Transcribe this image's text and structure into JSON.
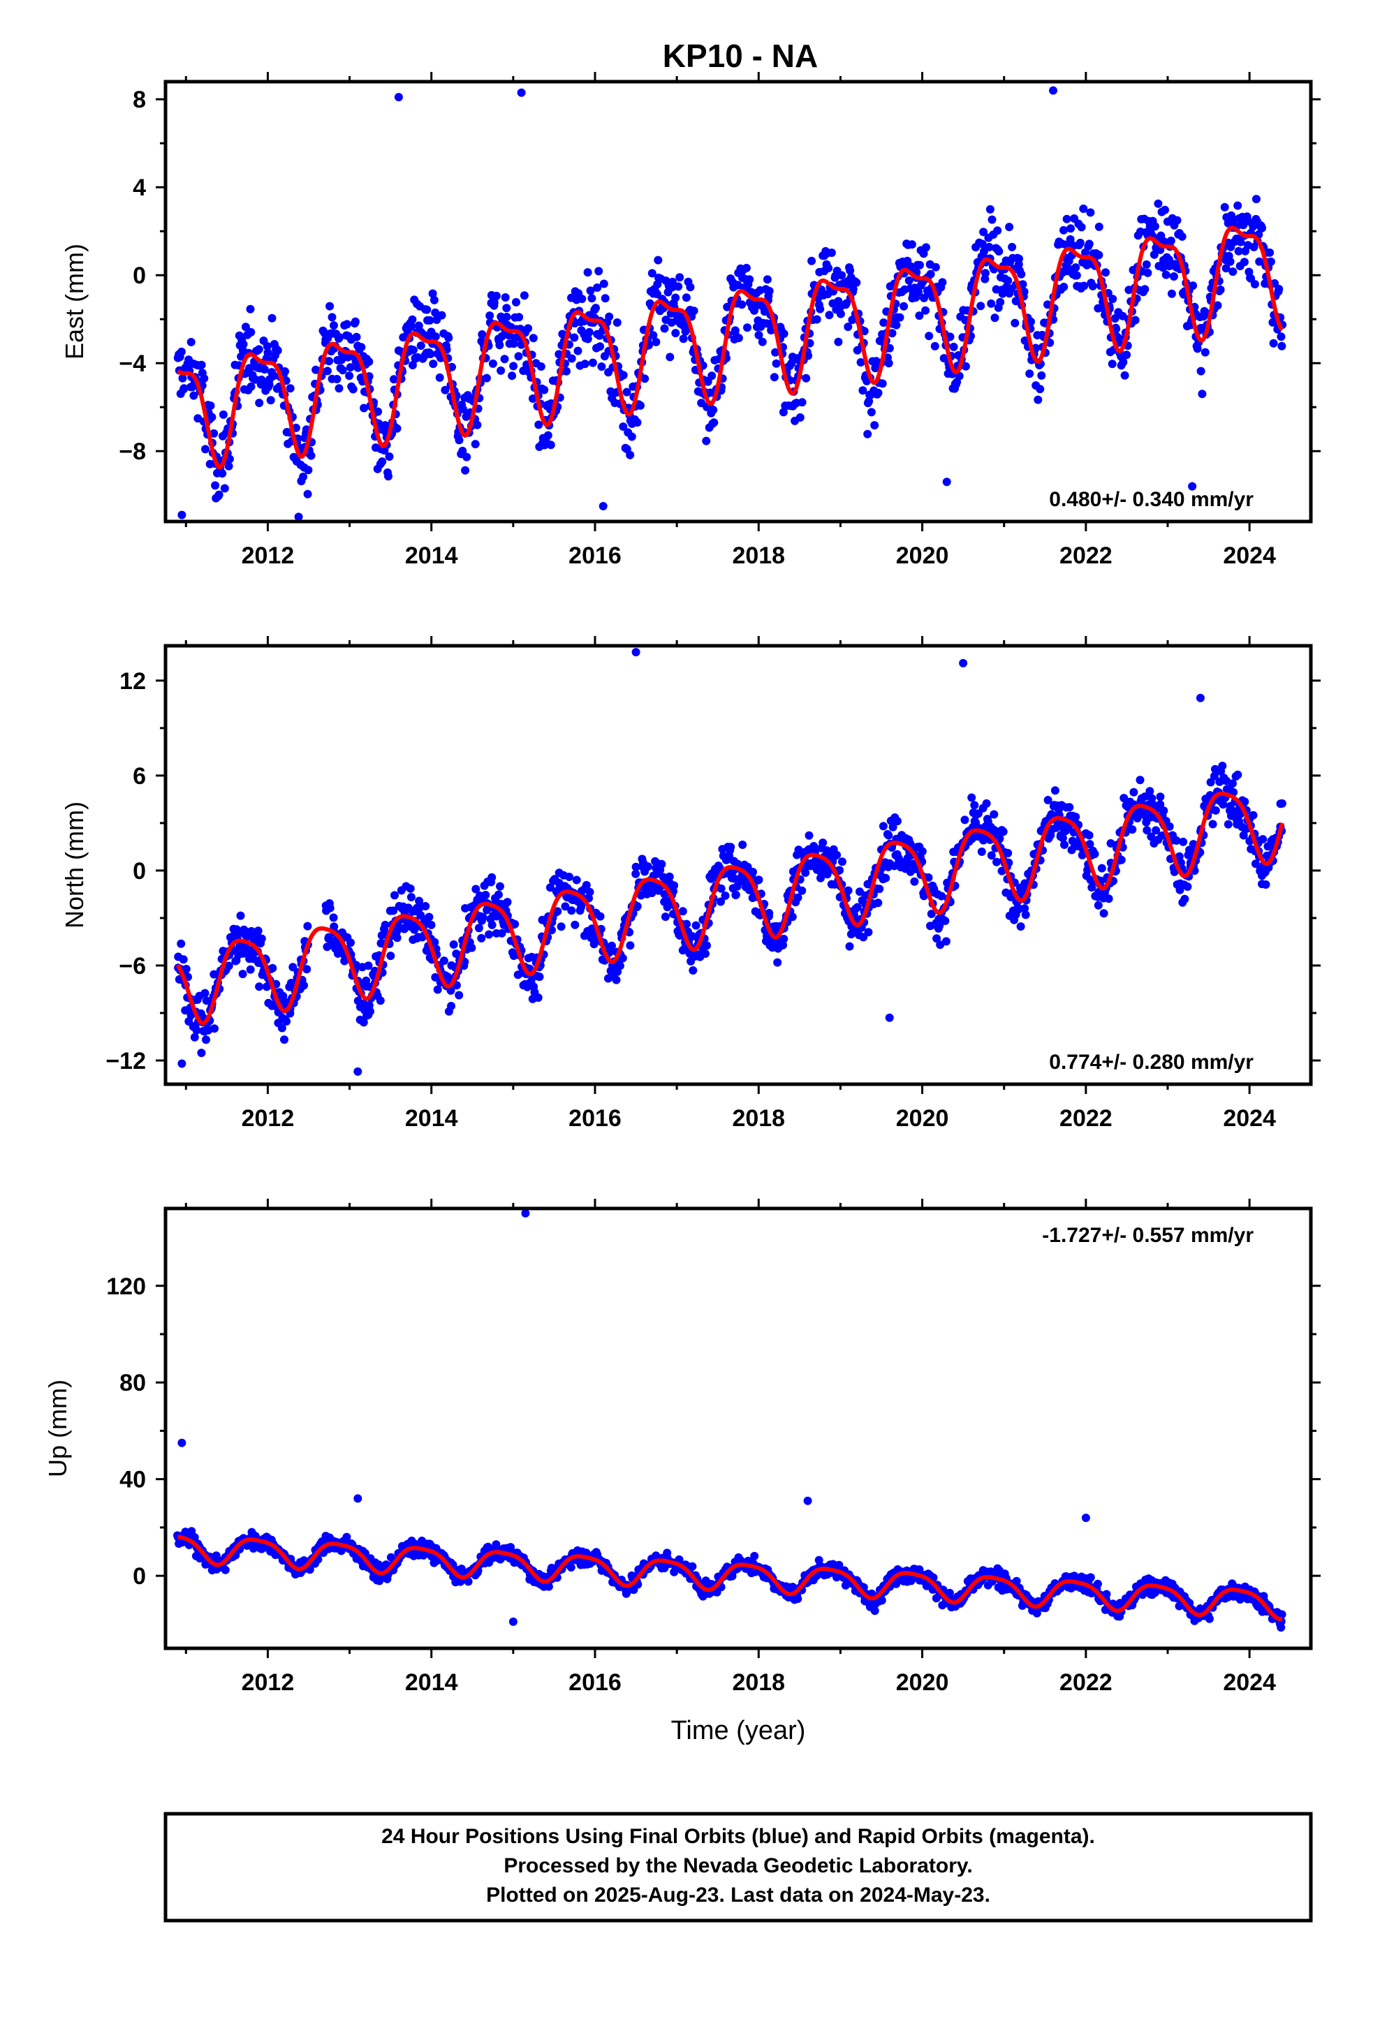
{
  "title": "KP10 - NA",
  "colors": {
    "points": "#0000ff",
    "model": "#ff0000",
    "frame": "#000000"
  },
  "chart_data": [
    {
      "type": "scatter",
      "name": "east",
      "ylabel": "East (mm)",
      "xlabel": "",
      "xlim": [
        2010.75,
        2024.75
      ],
      "ylim": [
        -11.2,
        8.8
      ],
      "xticks": [
        "2012",
        "2014",
        "2016",
        "2018",
        "2020",
        "2022",
        "2024"
      ],
      "yticks": [
        "8",
        "4",
        "0",
        "−4",
        "−8"
      ],
      "rate_label": "0.480+/- 0.340 mm/yr",
      "rate_position": "bottom-right",
      "model": {
        "start": 2010.9,
        "end": 2024.4,
        "offset": -5.9,
        "rate": 0.48,
        "annual_amplitude": 2.3,
        "annual_phase": 0.65,
        "semiannual_amplitude": 0.8
      },
      "scatter": {
        "std": 2.2,
        "outliers": [
          [
            2013.6,
            8.1
          ],
          [
            2015.1,
            8.3
          ],
          [
            2016.1,
            -10.5
          ],
          [
            2021.6,
            8.4
          ],
          [
            2010.95,
            -10.9
          ],
          [
            2023.3,
            -9.6
          ],
          [
            2020.3,
            -9.4
          ]
        ]
      }
    },
    {
      "type": "scatter",
      "name": "north",
      "ylabel": "North (mm)",
      "xlabel": "",
      "xlim": [
        2010.75,
        2024.75
      ],
      "ylim": [
        -13.5,
        14.2
      ],
      "xticks": [
        "2012",
        "2014",
        "2016",
        "2018",
        "2020",
        "2022",
        "2024"
      ],
      "yticks": [
        "12",
        "6",
        "0",
        "−6",
        "−12"
      ],
      "rate_label": "0.774+/- 0.280 mm/yr",
      "rate_position": "bottom-right",
      "model": {
        "start": 2010.9,
        "end": 2024.4,
        "offset": -7.0,
        "rate": 0.774,
        "annual_amplitude": 2.4,
        "annual_phase": 0.45,
        "semiannual_amplitude": 0.5
      },
      "scatter": {
        "std": 2.0,
        "outliers": [
          [
            2016.5,
            13.8
          ],
          [
            2020.5,
            13.1
          ],
          [
            2013.1,
            -12.7
          ],
          [
            2010.95,
            -12.2
          ],
          [
            2023.4,
            10.9
          ],
          [
            2019.6,
            -9.3
          ]
        ]
      }
    },
    {
      "type": "scatter",
      "name": "up",
      "ylabel": "Up (mm)",
      "xlabel": "Time (year)",
      "xlim": [
        2010.75,
        2024.75
      ],
      "ylim": [
        -30,
        152
      ],
      "xticks": [
        "2012",
        "2014",
        "2016",
        "2018",
        "2020",
        "2022",
        "2024"
      ],
      "yticks": [
        "120",
        "80",
        "40",
        "0"
      ],
      "rate_label": "-1.727+/- 0.557 mm/yr",
      "rate_position": "top-right",
      "model": {
        "start": 2010.9,
        "end": 2024.4,
        "offset": 12.0,
        "rate": -1.727,
        "annual_amplitude": 5.5,
        "annual_phase": 0.62,
        "semiannual_amplitude": 1.2
      },
      "scatter": {
        "std": 4.0,
        "outliers": [
          [
            2015.15,
            150
          ],
          [
            2010.95,
            55
          ],
          [
            2013.1,
            32
          ],
          [
            2018.6,
            31
          ],
          [
            2022.0,
            24
          ],
          [
            2015.0,
            -19
          ]
        ]
      }
    }
  ],
  "footer": {
    "line1": "24 Hour Positions Using Final Orbits (blue) and Rapid Orbits (magenta).",
    "line2": "Processed by the Nevada Geodetic Laboratory.",
    "line3": "Plotted on 2025-Aug-23. Last data on 2024-May-23."
  }
}
